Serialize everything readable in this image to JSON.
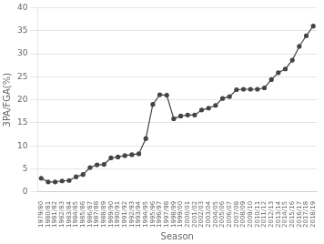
{
  "chart_data": {
    "type": "line",
    "categories": [
      "1979/80",
      "1980/81",
      "1981/82",
      "1982/83",
      "1983/84",
      "1984/85",
      "1985/86",
      "1986/87",
      "1987/88",
      "1988/89",
      "1989/90",
      "1990/91",
      "1991/92",
      "1992/93",
      "1993/94",
      "1994/95",
      "1995/96",
      "1996/97",
      "1997/98",
      "1998/99",
      "1999/00",
      "2000/01",
      "2001/02",
      "2002/03",
      "2003/04",
      "2004/05",
      "2005/06",
      "2006/07",
      "2007/08",
      "2008/09",
      "2009/10",
      "2010/11",
      "2011/12",
      "2012/13",
      "2013/14",
      "2014/15",
      "2015/16",
      "2016/17",
      "2017/18",
      "2018/19"
    ],
    "values": [
      3.0,
      2.2,
      2.2,
      2.4,
      2.5,
      3.3,
      3.8,
      5.3,
      5.9,
      6.0,
      7.4,
      7.6,
      7.9,
      8.1,
      8.3,
      11.6,
      19.0,
      21.1,
      21.0,
      15.9,
      16.5,
      16.7,
      16.7,
      17.8,
      18.2,
      18.8,
      20.3,
      20.7,
      22.2,
      22.3,
      22.3,
      22.3,
      22.6,
      24.4,
      25.9,
      26.7,
      28.6,
      31.6,
      33.9,
      36.0
    ],
    "xlabel": "Season",
    "ylabel": "3PA/FGA(%)",
    "ylim": [
      0,
      40
    ],
    "yticks": [
      0,
      5,
      10,
      15,
      20,
      25,
      30,
      35,
      40
    ],
    "color": "#444444",
    "marker": "circle",
    "grid": true
  }
}
